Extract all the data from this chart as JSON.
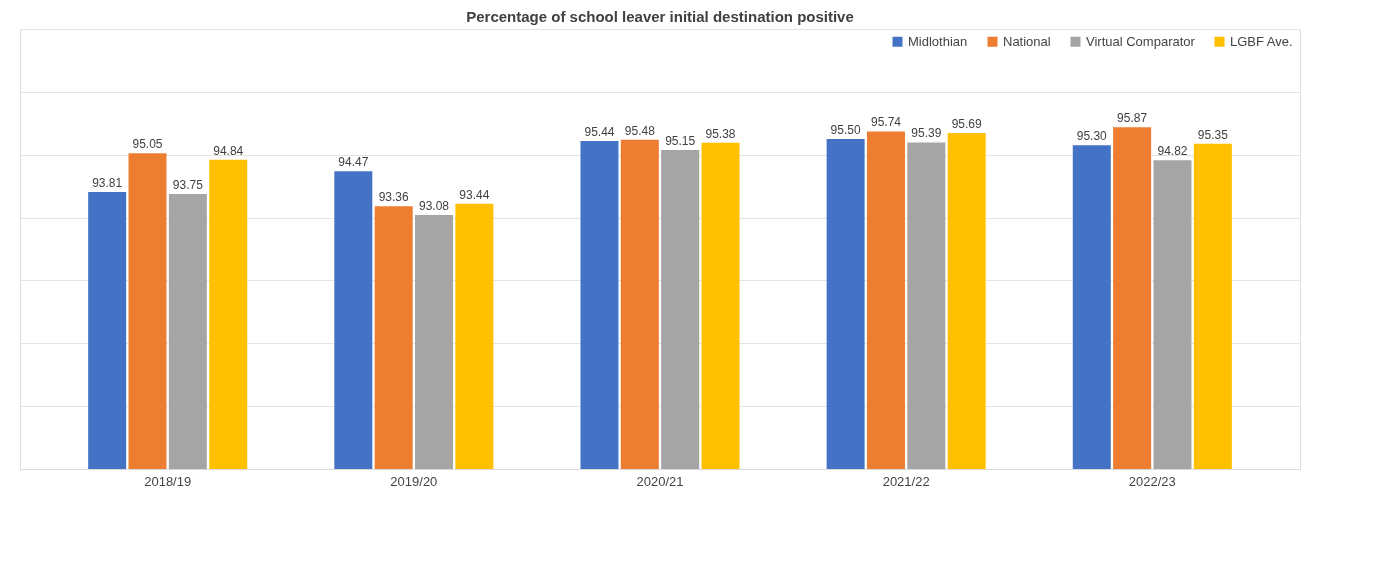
{
  "chart_data": {
    "type": "bar",
    "title": "Percentage of school leaver initial destination positive",
    "categories": [
      "2018/19",
      "2019/20",
      "2020/21",
      "2021/22",
      "2022/23"
    ],
    "series": [
      {
        "name": "Midlothian",
        "color": "#4472c4",
        "values": [
          93.81,
          94.47,
          95.44,
          95.5,
          95.3
        ],
        "value_labels": [
          "93.81",
          "94.47",
          "95.44",
          "95.50",
          "95.30"
        ]
      },
      {
        "name": "National",
        "color": "#ed7d31",
        "values": [
          95.05,
          93.36,
          95.48,
          95.74,
          95.87
        ],
        "value_labels": [
          "95.05",
          "93.36",
          "95.48",
          "95.74",
          "95.87"
        ]
      },
      {
        "name": "Virtual Comparator",
        "color": "#a5a5a5",
        "values": [
          93.75,
          93.08,
          95.15,
          95.39,
          94.82
        ],
        "value_labels": [
          "93.75",
          "93.08",
          "95.15",
          "95.39",
          "94.82"
        ]
      },
      {
        "name": "LGBF Ave.",
        "color": "#ffc000",
        "values": [
          94.84,
          93.44,
          95.38,
          95.69,
          95.35
        ],
        "value_labels": [
          "94.84",
          "93.44",
          "95.38",
          "95.69",
          "95.35"
        ]
      }
    ],
    "ylim": [
      85,
      99
    ],
    "yticks": [
      {
        "value": 85,
        "label": null
      },
      {
        "value": 87,
        "label": null
      },
      {
        "value": 89,
        "label": null
      },
      {
        "value": 91,
        "label": null
      },
      {
        "value": 93,
        "label": null
      },
      {
        "value": 95,
        "label": null
      },
      {
        "value": 97,
        "label": null
      },
      {
        "value": 99,
        "label": null
      }
    ],
    "tick_labels": "x",
    "grid": "y",
    "legend": "top right"
  }
}
